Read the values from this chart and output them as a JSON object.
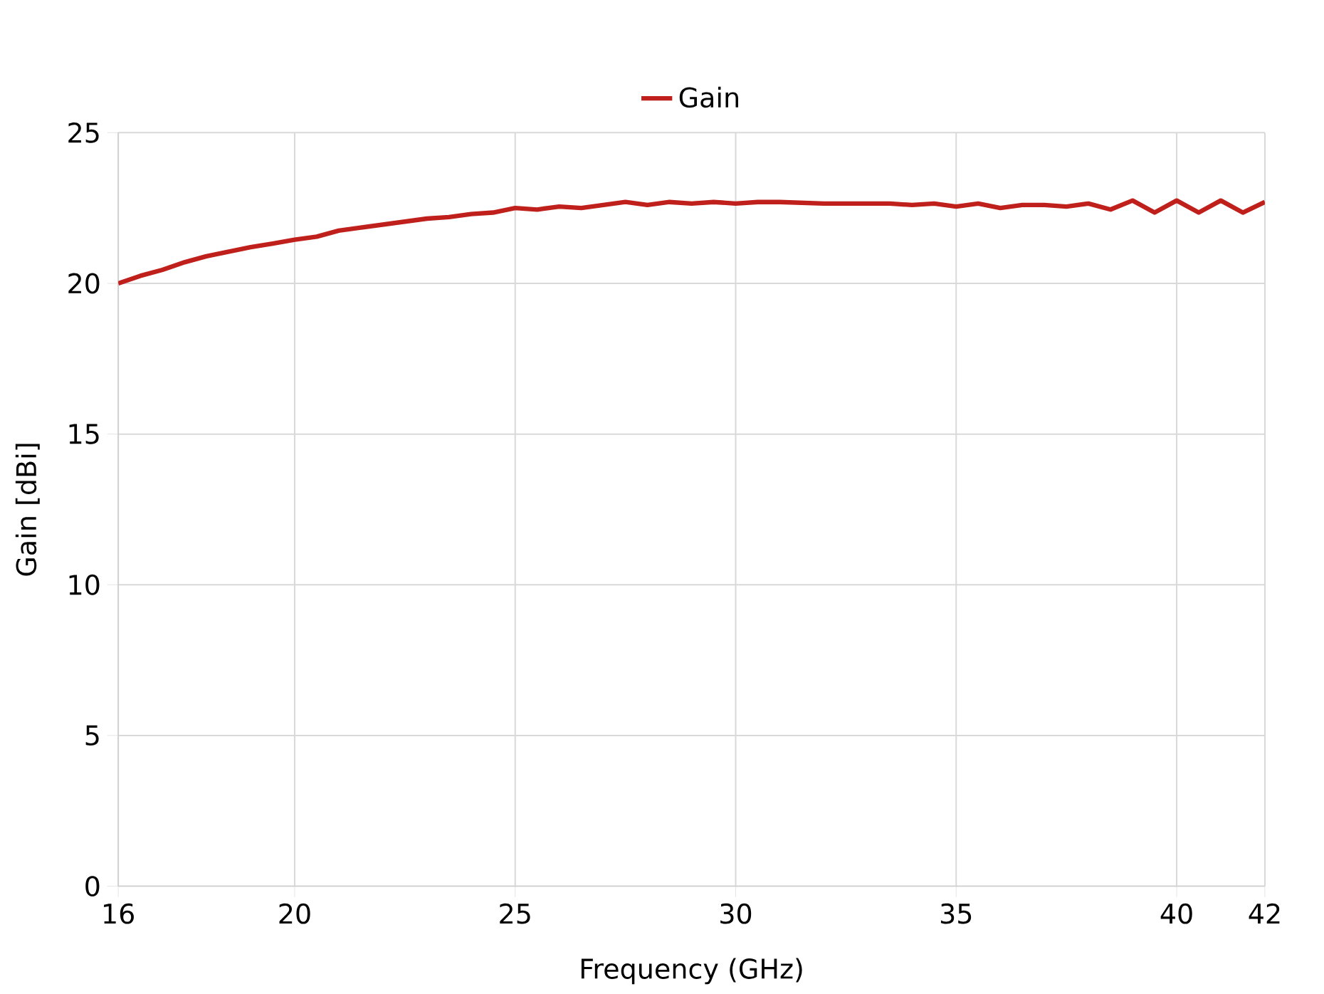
{
  "chart_data": {
    "type": "line",
    "xlabel": "Frequency (GHz)",
    "ylabel": "Gain [dBi]",
    "xlim": [
      16,
      42
    ],
    "xticks": [
      16,
      20,
      25,
      30,
      35,
      40,
      42
    ],
    "ylim": [
      0,
      25
    ],
    "yticks": [
      0,
      5,
      10,
      15,
      20,
      25
    ],
    "grid": true,
    "legend": "top",
    "marker": "none",
    "line_style": "solid",
    "x": [
      16,
      16.5,
      17,
      17.5,
      18,
      18.5,
      19,
      19.5,
      20,
      20.5,
      21,
      21.5,
      22,
      22.5,
      23,
      23.5,
      24,
      24.5,
      25,
      25.5,
      26,
      26.5,
      27,
      27.5,
      28,
      28.5,
      29,
      29.5,
      30,
      30.5,
      31,
      32,
      33,
      33.5,
      34,
      34.5,
      35,
      35.5,
      36,
      36.5,
      37,
      37.5,
      38,
      38.5,
      39,
      39.5,
      40,
      40.5,
      41,
      41.5,
      42
    ],
    "series": [
      {
        "name": "Gain",
        "color": "#c0201c",
        "values": [
          20.0,
          20.25,
          20.45,
          20.7,
          20.9,
          21.05,
          21.2,
          21.32,
          21.45,
          21.55,
          21.75,
          21.85,
          21.95,
          22.05,
          22.15,
          22.2,
          22.3,
          22.35,
          22.5,
          22.45,
          22.55,
          22.5,
          22.6,
          22.7,
          22.6,
          22.7,
          22.65,
          22.7,
          22.65,
          22.7,
          22.7,
          22.65,
          22.65,
          22.65,
          22.6,
          22.65,
          22.55,
          22.65,
          22.5,
          22.6,
          22.6,
          22.55,
          22.65,
          22.45,
          22.75,
          22.35,
          22.75,
          22.35,
          22.75,
          22.35,
          22.7
        ]
      }
    ]
  }
}
